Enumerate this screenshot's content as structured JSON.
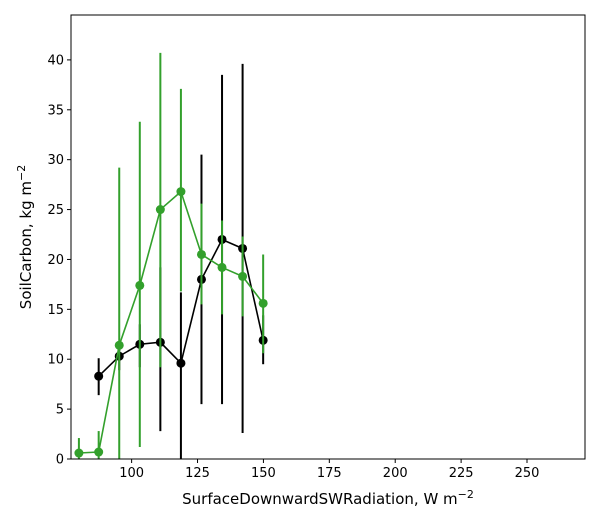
{
  "chart_data": {
    "type": "line",
    "title": "",
    "xlabel": "SurfaceDownwardSWRadiation,  W m",
    "xlabel_superscript": "−2",
    "ylabel": "SoilCarbon,  kg m",
    "ylabel_superscript": "−2",
    "xlim": [
      77,
      272
    ],
    "ylim": [
      0,
      44.5
    ],
    "xticks": [
      100,
      125,
      150,
      175,
      200,
      225,
      250
    ],
    "yticks": [
      0,
      5,
      10,
      15,
      20,
      25,
      30,
      35,
      40
    ],
    "grid": false,
    "series": [
      {
        "color": "#000000",
        "x": [
          87.5,
          95.3,
          103.1,
          110.9,
          118.7,
          126.5,
          134.3,
          142.1,
          149.9
        ],
        "y": [
          8.3,
          10.3,
          11.5,
          11.7,
          9.6,
          18.0,
          22.0,
          21.1,
          11.9
        ],
        "yerr_low": [
          6.4,
          8.9,
          9.2,
          2.8,
          0.0,
          5.5,
          5.5,
          2.6,
          9.5
        ],
        "yerr_high": [
          10.1,
          11.8,
          13.5,
          19.2,
          16.7,
          30.5,
          38.5,
          39.6,
          14.4
        ]
      },
      {
        "color": "#33a02c",
        "x": [
          80.0,
          87.5,
          95.3,
          103.1,
          110.9,
          118.7,
          126.5,
          134.3,
          142.1,
          149.9
        ],
        "y": [
          0.6,
          0.7,
          11.4,
          17.4,
          25.0,
          26.8,
          20.5,
          19.2,
          18.3,
          15.6
        ],
        "yerr_low": [
          0.0,
          0.0,
          0.0,
          1.2,
          9.2,
          16.8,
          15.5,
          14.5,
          14.3,
          10.6
        ],
        "yerr_high": [
          2.1,
          2.8,
          29.2,
          33.8,
          40.7,
          37.1,
          25.6,
          23.9,
          22.3,
          20.5
        ]
      }
    ]
  }
}
